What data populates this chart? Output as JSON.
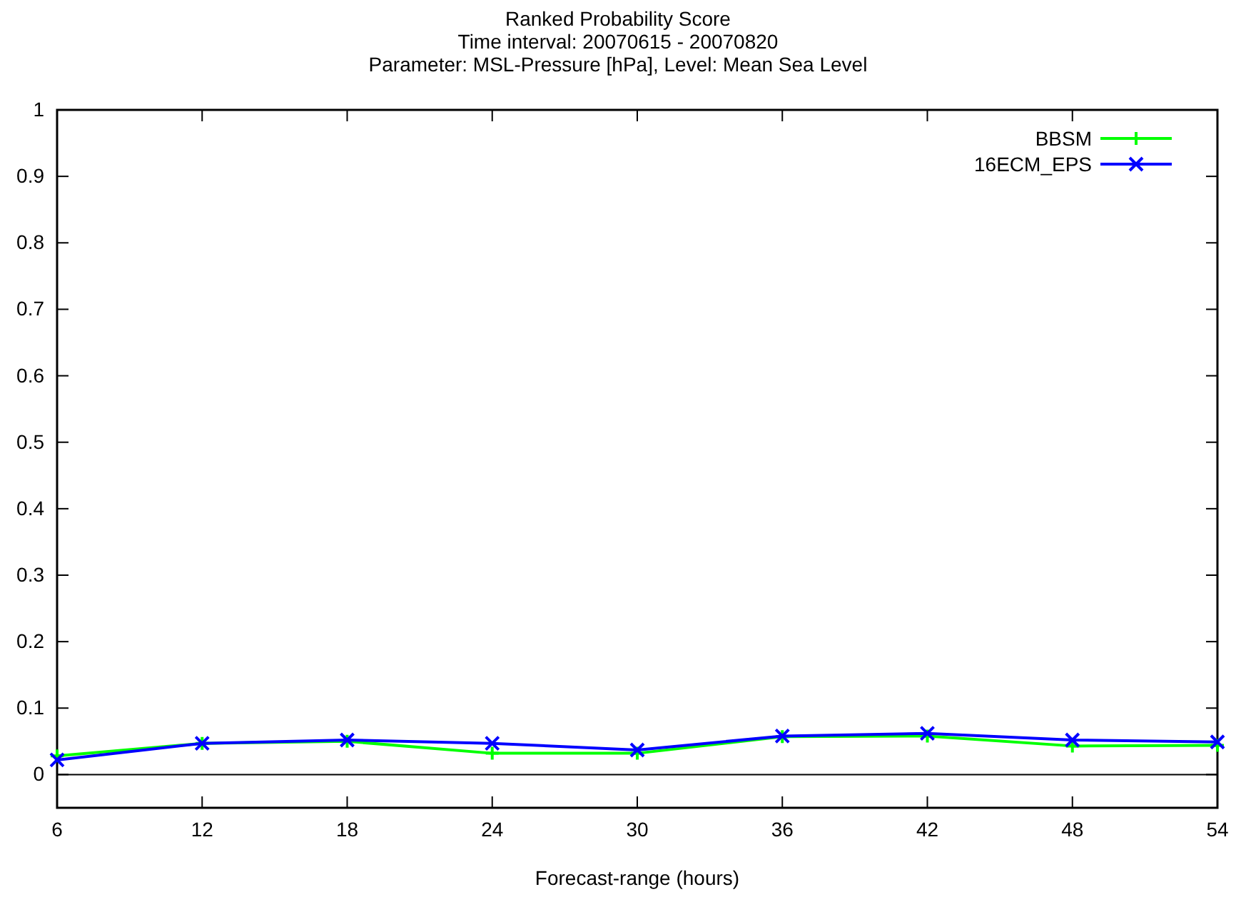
{
  "chart_data": {
    "type": "line",
    "title": "Ranked Probability Score",
    "subtitle": "Time interval: 20070615 - 20070820\nParameter: MSL-Pressure [hPa], Level: Mean Sea Level",
    "xlabel": "Forecast-range (hours)",
    "x": [
      6,
      12,
      18,
      24,
      30,
      36,
      42,
      48,
      54
    ],
    "series": [
      {
        "name": "BBSM",
        "color": "#00ff00",
        "marker": "cross",
        "values": [
          0.028,
          0.047,
          0.05,
          0.032,
          0.032,
          0.057,
          0.058,
          0.043,
          0.044
        ]
      },
      {
        "name": "16ECM_EPS",
        "color": "#0000ff",
        "marker": "x",
        "values": [
          0.022,
          0.047,
          0.052,
          0.047,
          0.037,
          0.058,
          0.062,
          0.052,
          0.049
        ]
      }
    ],
    "xlim": [
      6,
      54
    ],
    "xticks": [
      6,
      12,
      18,
      24,
      30,
      36,
      42,
      48,
      54
    ],
    "ylim": [
      -0.05,
      1
    ],
    "yticks": [
      0,
      0.1,
      0.2,
      0.3,
      0.4,
      0.5,
      0.6,
      0.7,
      0.8,
      0.9,
      1
    ],
    "ref_lines": [
      {
        "axis": "y",
        "value": 0,
        "color": "#000000"
      }
    ],
    "grid": false,
    "legend": "top right",
    "line_style": "solid"
  }
}
